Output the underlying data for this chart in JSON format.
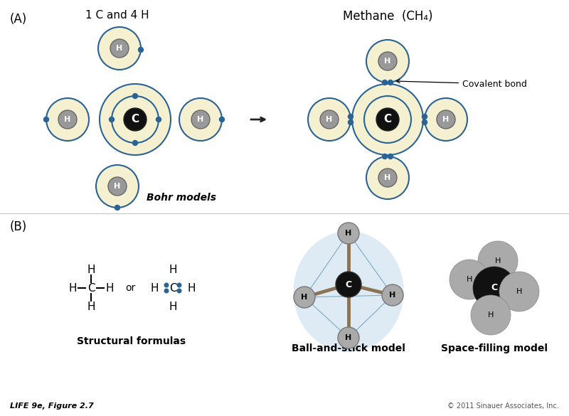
{
  "bg_color": "#ffffff",
  "section_A_label": "(A)",
  "section_B_label": "(B)",
  "left_title": "1 C and 4 H",
  "right_title": "Methane  (CH₄)",
  "bohr_models_label": "Bohr models",
  "covalent_bond_label": "Covalent bond",
  "structural_formulas_label": "Structural formulas",
  "ball_stick_label": "Ball-and-stick model",
  "space_fill_label": "Space-filling model",
  "footer_left": "LIFE 9e, Figure 2.7",
  "footer_right": "© 2011 Sinauer Associates, Inc.",
  "cream_color": "#f5f0d0",
  "blue_color": "#2a6496",
  "electron_color": "#2a6496",
  "bond_line_color": "#8b7355",
  "blue_light_color": "#b8d4e8",
  "arrow_color": "#222222",
  "divider_color": "#cccccc"
}
